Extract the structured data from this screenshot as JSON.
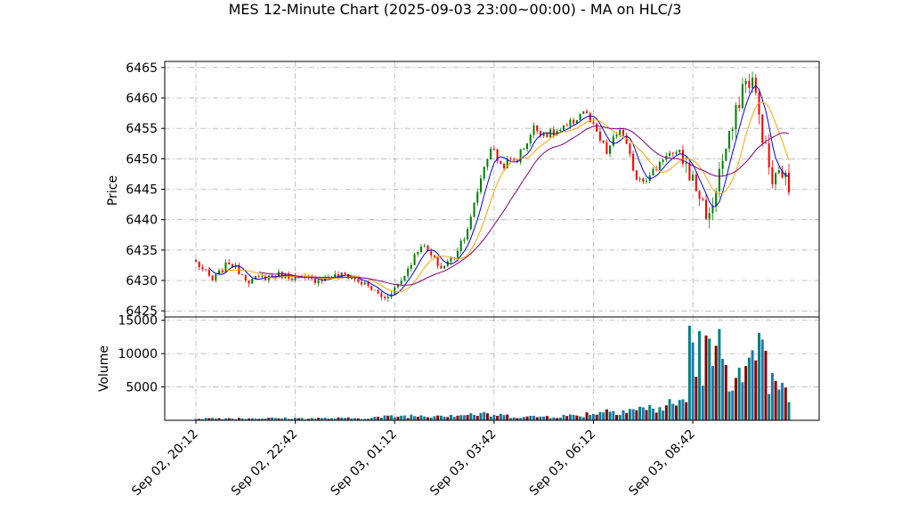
{
  "chart_data": {
    "title": "MES 12-Minute Chart (2025-09-03 23:00~00:00) - MA on HLC/3",
    "type": "candlestick",
    "bar_count": 180,
    "x_tick_labels": [
      "Sep 02, 20:12",
      "Sep 02, 22:42",
      "Sep 03, 01:12",
      "Sep 03, 03:42",
      "Sep 03, 06:12",
      "Sep 03, 08:42"
    ],
    "x_tick_bar_index": [
      0,
      30,
      60,
      90,
      120,
      150
    ],
    "grid": true,
    "colors": {
      "up": "#008000",
      "down": "#ff0000",
      "ma_fast": "#0000ff",
      "ma_mid": "#ffa500",
      "ma_slow": "#800080",
      "volume_up": "#1f77b4",
      "volume_down": "#8b0000",
      "volume_alt": "#008080"
    },
    "price_panel": {
      "ylabel": "Price",
      "ylim": [
        6424,
        6466
      ],
      "y_ticks": [
        6425,
        6430,
        6435,
        6440,
        6445,
        6450,
        6455,
        6460,
        6465
      ],
      "key_points": [
        {
          "bar": 0,
          "close": 6433
        },
        {
          "bar": 5,
          "close": 6430
        },
        {
          "bar": 10,
          "close": 6433
        },
        {
          "bar": 16,
          "close": 6430
        },
        {
          "bar": 25,
          "close": 6431
        },
        {
          "bar": 35,
          "close": 6430
        },
        {
          "bar": 45,
          "close": 6431
        },
        {
          "bar": 52,
          "close": 6429
        },
        {
          "bar": 57,
          "close": 6427
        },
        {
          "bar": 62,
          "close": 6430
        },
        {
          "bar": 68,
          "close": 6436
        },
        {
          "bar": 74,
          "close": 6432
        },
        {
          "bar": 78,
          "close": 6434
        },
        {
          "bar": 83,
          "close": 6440
        },
        {
          "bar": 86,
          "close": 6447
        },
        {
          "bar": 89,
          "close": 6452
        },
        {
          "bar": 92,
          "close": 6449
        },
        {
          "bar": 97,
          "close": 6450
        },
        {
          "bar": 102,
          "close": 6455
        },
        {
          "bar": 107,
          "close": 6454
        },
        {
          "bar": 112,
          "close": 6455
        },
        {
          "bar": 117,
          "close": 6458
        },
        {
          "bar": 121,
          "close": 6454
        },
        {
          "bar": 124,
          "close": 6451
        },
        {
          "bar": 128,
          "close": 6455
        },
        {
          "bar": 133,
          "close": 6447
        },
        {
          "bar": 137,
          "close": 6447
        },
        {
          "bar": 142,
          "close": 6451
        },
        {
          "bar": 147,
          "close": 6450
        },
        {
          "bar": 152,
          "close": 6444
        },
        {
          "bar": 155,
          "close": 6440
        },
        {
          "bar": 158,
          "close": 6448
        },
        {
          "bar": 162,
          "close": 6455
        },
        {
          "bar": 165,
          "close": 6462
        },
        {
          "bar": 168,
          "close": 6463
        },
        {
          "bar": 171,
          "close": 6454
        },
        {
          "bar": 174,
          "close": 6446
        },
        {
          "bar": 177,
          "close": 6448
        },
        {
          "bar": 179,
          "close": 6445
        }
      ]
    },
    "volume_panel": {
      "ylabel": "Volume",
      "ylim": [
        0,
        15500
      ],
      "y_ticks": [
        5000,
        10000,
        15000
      ],
      "key_points": [
        {
          "bar": 0,
          "volume": 300
        },
        {
          "bar": 50,
          "volume": 300
        },
        {
          "bar": 60,
          "volume": 600
        },
        {
          "bar": 75,
          "volume": 800
        },
        {
          "bar": 85,
          "volume": 900
        },
        {
          "bar": 100,
          "volume": 500
        },
        {
          "bar": 115,
          "volume": 700
        },
        {
          "bar": 125,
          "volume": 1500
        },
        {
          "bar": 140,
          "volume": 1800
        },
        {
          "bar": 148,
          "volume": 3000
        },
        {
          "bar": 150,
          "volume": 10500
        },
        {
          "bar": 155,
          "volume": 9000
        },
        {
          "bar": 160,
          "volume": 9500
        },
        {
          "bar": 165,
          "volume": 5000
        },
        {
          "bar": 170,
          "volume": 9000
        },
        {
          "bar": 175,
          "volume": 4500
        },
        {
          "bar": 179,
          "volume": 3800
        }
      ],
      "spikes": [
        {
          "bar": 149,
          "volume": 14200
        },
        {
          "bar": 158,
          "volume": 13700
        },
        {
          "bar": 171,
          "volume": 12100
        }
      ]
    }
  }
}
